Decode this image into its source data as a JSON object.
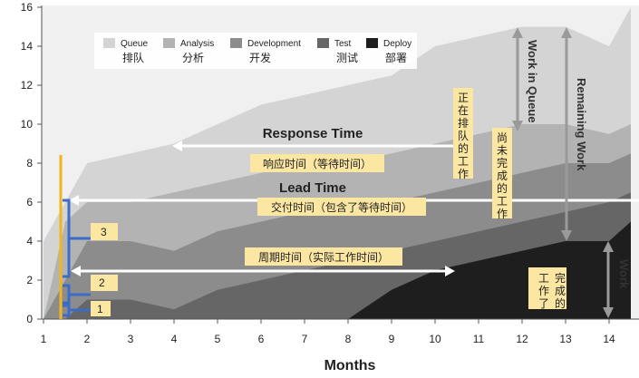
{
  "chart_data": {
    "type": "area",
    "x": [
      1,
      1.5,
      2,
      3,
      4,
      5,
      6,
      7,
      8,
      9,
      10,
      11,
      12,
      13,
      14,
      14.5
    ],
    "xlim": [
      1,
      14.5
    ],
    "ylim": [
      0,
      16
    ],
    "xticks": [
      1,
      2,
      3,
      4,
      5,
      6,
      7,
      8,
      9,
      10,
      11,
      12,
      13,
      14
    ],
    "yticks": [
      0,
      2,
      4,
      6,
      8,
      10,
      12,
      14,
      16
    ],
    "xlabel": "Months",
    "series": [
      {
        "name": "Queue",
        "name_zh": "排队",
        "color": "#d4d4d4",
        "values": [
          4,
          6,
          8,
          8.5,
          9,
          10,
          11,
          11.5,
          12,
          12.5,
          14,
          14.5,
          15,
          15,
          14,
          16
        ]
      },
      {
        "name": "Analysis",
        "name_zh": "分析",
        "color": "#b3b3b3",
        "values": [
          0,
          5,
          6,
          6,
          6.5,
          7,
          7.5,
          8,
          8,
          8.5,
          9,
          9.5,
          10,
          10,
          9.5,
          10
        ]
      },
      {
        "name": "Development",
        "name_zh": "开发",
        "color": "#8c8c8c",
        "values": [
          0,
          2,
          4,
          4,
          3.5,
          4.5,
          5,
          5.5,
          5.5,
          6,
          6.5,
          7,
          7.5,
          8,
          8,
          8.5
        ]
      },
      {
        "name": "Test",
        "name_zh": "测试",
        "color": "#666666",
        "values": [
          0,
          0,
          1,
          1,
          0.5,
          1.5,
          2,
          2.5,
          3,
          3.5,
          4,
          4.5,
          5,
          5.5,
          6,
          6.5
        ]
      },
      {
        "name": "Deploy",
        "name_zh": "部署",
        "color": "#1e1e1e",
        "values": [
          0,
          0,
          0,
          0,
          0,
          0,
          0,
          0,
          0,
          1.5,
          2.5,
          3,
          3.5,
          4,
          4,
          5
        ]
      }
    ],
    "annotations": {
      "response_time": "Response Time",
      "response_time_zh": "响应时间（等待时间）",
      "lead_time": "Lead Time",
      "lead_time_zh": "交付时间（包含了等待时间）",
      "cycle_time_zh": "周期时间（实际工作时间）",
      "in_queue_zh": "正在排队的工作",
      "unfinished_zh": "尚未完成的工作",
      "completed_zh": "完成的工作了",
      "work_in_queue": "Work in Queue",
      "remaining_work": "Remaining Work",
      "work": "Work",
      "brackets": [
        "1",
        "2",
        "3"
      ]
    }
  }
}
